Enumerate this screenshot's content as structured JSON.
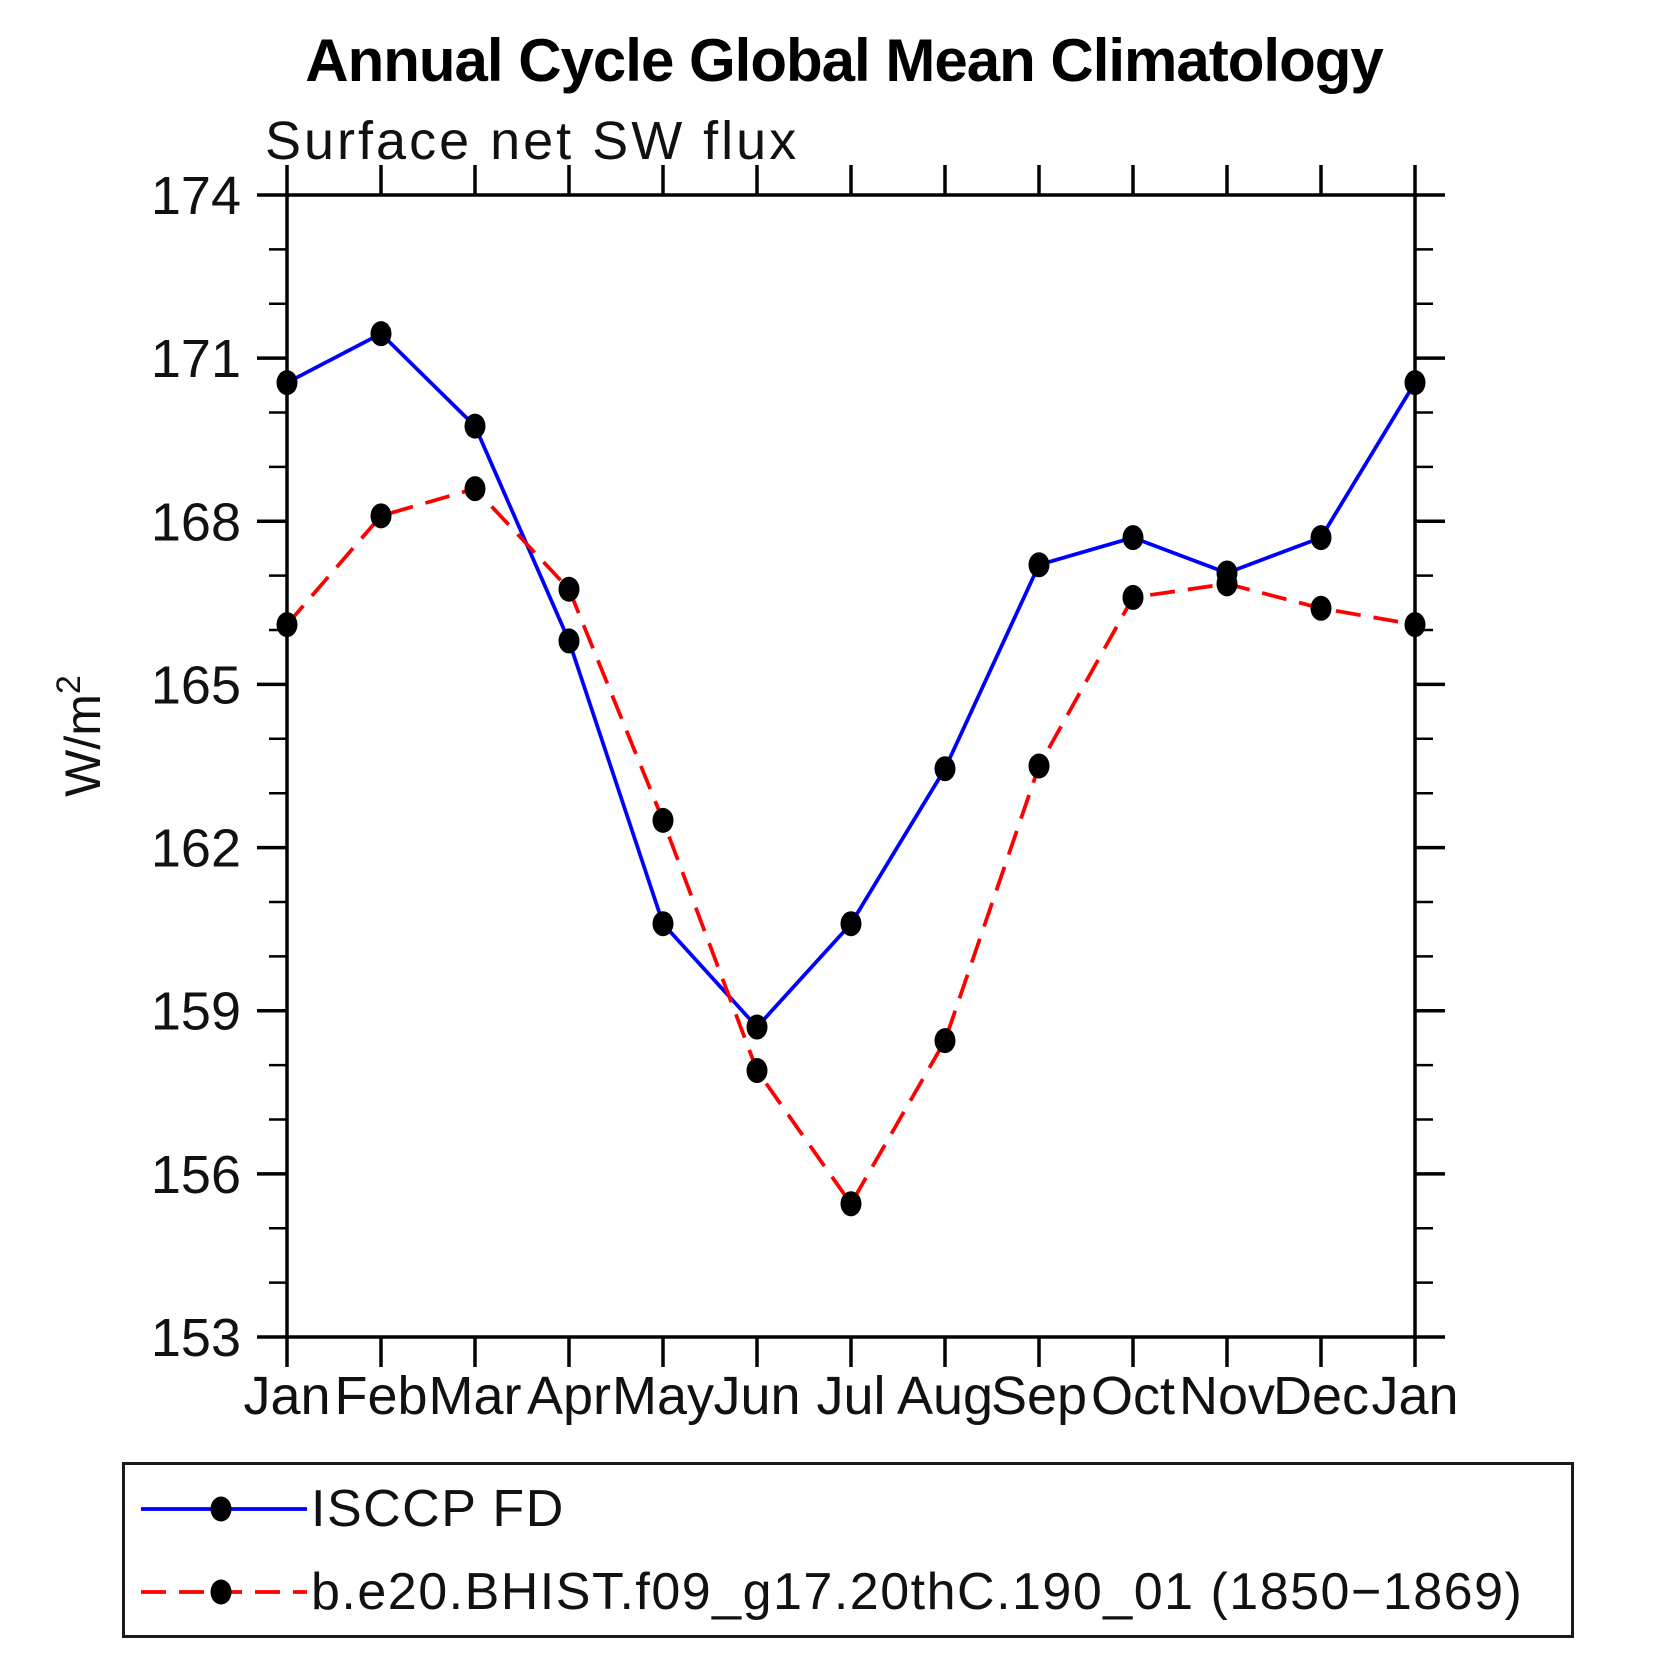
{
  "page": {
    "background": "#ffffff"
  },
  "header": {
    "title": "Annual Cycle Global Mean Climatology",
    "subtitle": "Surface net SW flux"
  },
  "chart_data": {
    "type": "line",
    "title": "Annual Cycle Global Mean Climatology",
    "subtitle": "Surface net SW flux",
    "ylabel_base": "W/m",
    "ylabel_exponent": "2",
    "xlabel": "",
    "categories": [
      "Jan",
      "Feb",
      "Mar",
      "Apr",
      "May",
      "Jun",
      "Jul",
      "Aug",
      "Sep",
      "Oct",
      "Nov",
      "Dec",
      "Jan"
    ],
    "y_major_ticks": [
      153,
      156,
      159,
      162,
      165,
      168,
      171,
      174
    ],
    "y_minor_step": 1,
    "ylim": [
      153,
      174
    ],
    "grid": false,
    "legend_position": "bottom-box",
    "series": [
      {
        "name": "ISCCP FD",
        "line_color": "#0000ff",
        "line_style": "solid",
        "marker_color": "#000000",
        "values": [
          170.55,
          171.45,
          169.75,
          165.8,
          160.6,
          158.7,
          160.6,
          163.45,
          167.2,
          167.7,
          167.05,
          167.7,
          170.55
        ]
      },
      {
        "name": "b.e20.BHIST.f09_g17.20thC.190_01 (1850−1869)",
        "line_color": "#ff0000",
        "line_style": "dashed",
        "marker_color": "#000000",
        "values": [
          166.1,
          168.1,
          168.6,
          166.75,
          162.5,
          157.9,
          155.45,
          158.45,
          163.5,
          166.6,
          166.85,
          166.4,
          166.1
        ]
      }
    ]
  }
}
